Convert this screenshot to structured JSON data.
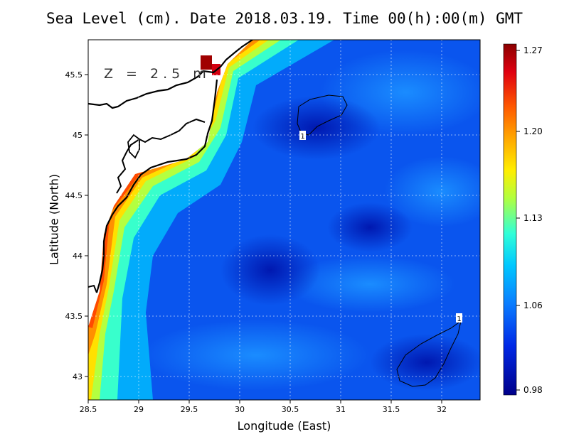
{
  "title": "Sea Level (cm). Date 2018.03.19. Time 00(h):00(m) GMT",
  "map": {
    "xlabel": "Longitude (East)",
    "ylabel": "Latitude (North)",
    "xticks": [
      "28.5",
      "29",
      "29.5",
      "30",
      "30.5",
      "31",
      "31.5",
      "32"
    ],
    "yticks": [
      "43",
      "43.5",
      "44",
      "44.5",
      "45",
      "45.5"
    ],
    "depth_label": "Z = 2.5 m",
    "contour_labels": [
      "1",
      "1"
    ],
    "grid": "dotted"
  },
  "colorbar": {
    "ticks": [
      "1.27",
      "1.20",
      "1.13",
      "1.06",
      "0.98"
    ],
    "colors": [
      "#8b0000",
      "#d4000a",
      "#ff5a00",
      "#ff9f00",
      "#ffe800",
      "#b8ff3c",
      "#3cffd0",
      "#00c8ff",
      "#0a7dff",
      "#0028e6",
      "#00009a"
    ]
  },
  "colors": {
    "land": "#ffffff",
    "coast": "#000000",
    "deep": "#0040e0"
  }
}
